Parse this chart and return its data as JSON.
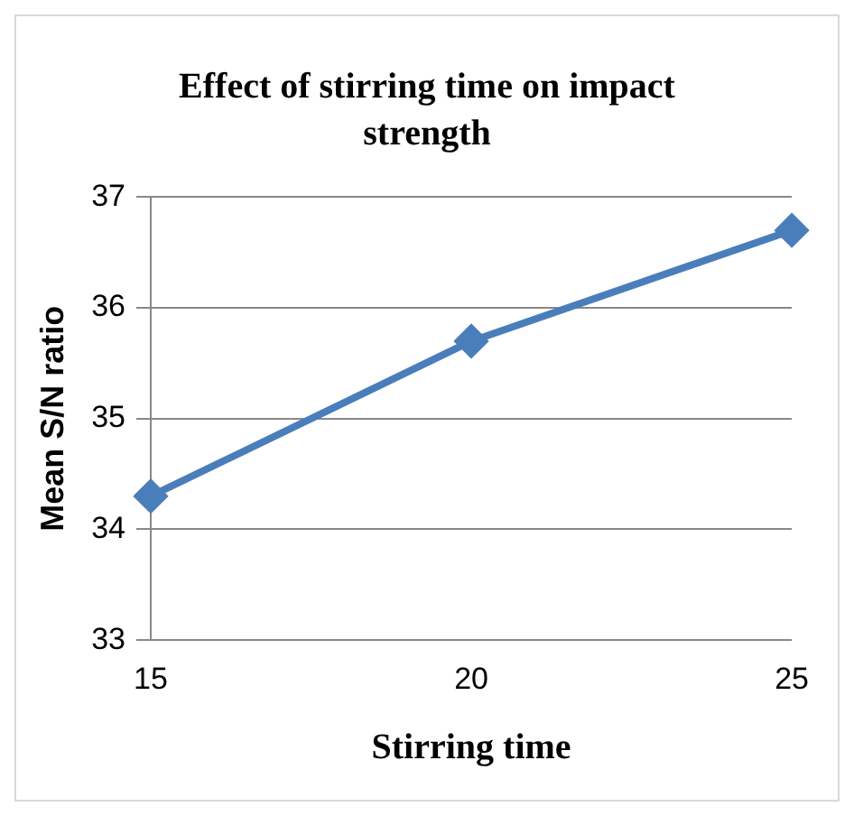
{
  "chart_data": {
    "type": "line",
    "title": "Effect of stirring time on impact strength",
    "xlabel": "Stirring time",
    "ylabel": "Mean S/N ratio",
    "categories": [
      "15",
      "20",
      "25"
    ],
    "series": [
      {
        "color": "#4a7ebb",
        "values": [
          34.3,
          35.7,
          36.7
        ]
      }
    ],
    "ylim": [
      33,
      37
    ],
    "yticks": [
      33,
      34,
      35,
      36,
      37
    ],
    "grid": "y",
    "marker": "diamond",
    "line_style": "solid",
    "legend": false
  }
}
